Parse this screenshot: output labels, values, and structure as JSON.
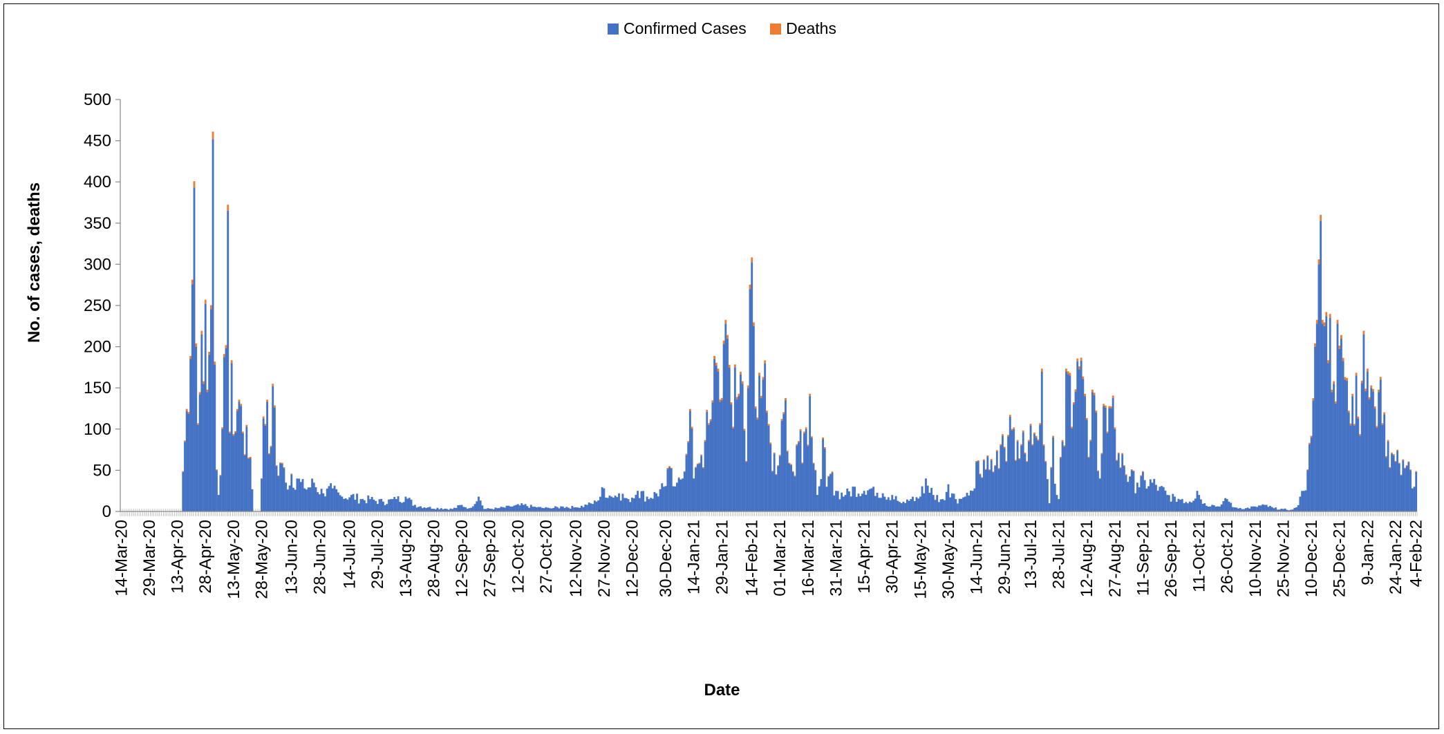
{
  "chart_data": {
    "type": "bar",
    "stacked": true,
    "xlabel": "Date",
    "ylabel": "No. of cases, deaths",
    "ylim": [
      0,
      500
    ],
    "yticks": [
      0,
      50,
      100,
      150,
      200,
      250,
      300,
      350,
      400,
      450,
      500
    ],
    "legend_position": "top-center",
    "grid": false,
    "colors": {
      "Confirmed Cases": "#4472C4",
      "Deaths": "#ED7D31"
    },
    "series": [
      {
        "name": "Confirmed Cases"
      },
      {
        "name": "Deaths"
      }
    ],
    "x_range": [
      "14-Mar-20",
      "4-Feb-22"
    ],
    "x_tick_labels": [
      "14-Mar-20",
      "29-Mar-20",
      "13-Apr-20",
      "28-Apr-20",
      "13-May-20",
      "28-May-20",
      "13-Jun-20",
      "28-Jun-20",
      "14-Jul-20",
      "29-Jul-20",
      "13-Aug-20",
      "28-Aug-20",
      "12-Sep-20",
      "27-Sep-20",
      "12-Oct-20",
      "27-Oct-20",
      "12-Nov-20",
      "27-Nov-20",
      "12-Dec-20",
      "30-Dec-20",
      "14-Jan-21",
      "29-Jan-21",
      "14-Feb-21",
      "01-Mar-21",
      "16-Mar-21",
      "31-Mar-21",
      "15-Apr-21",
      "30-Apr-21",
      "15-May-21",
      "30-May-21",
      "14-Jun-21",
      "29-Jun-21",
      "13-Jul-21",
      "28-Jul-21",
      "12-Aug-21",
      "27-Aug-21",
      "11-Sep-21",
      "26-Sep-21",
      "11-Oct-21",
      "26-Oct-21",
      "10-Nov-21",
      "25-Nov-21",
      "10-Dec-21",
      "25-Dec-21",
      "9-Jan-22",
      "24-Jan-22",
      "4-Feb-22"
    ],
    "daily_cases_profile": [
      [
        "14-Mar-20",
        0
      ],
      [
        "15-Apr-20",
        0
      ],
      [
        "16-Apr-20",
        48
      ],
      [
        "18-Apr-20",
        122
      ],
      [
        "20-Apr-20",
        185
      ],
      [
        "22-Apr-20",
        393
      ],
      [
        "23-Apr-20",
        200
      ],
      [
        "24-Apr-20",
        105
      ],
      [
        "26-Apr-20",
        215
      ],
      [
        "27-Apr-20",
        155
      ],
      [
        "28-Apr-20",
        252
      ],
      [
        "29-Apr-20",
        145
      ],
      [
        "30-Apr-20",
        190
      ],
      [
        "2-May-20",
        452
      ],
      [
        "4-May-20",
        50
      ],
      [
        "5-May-20",
        20
      ],
      [
        "7-May-20",
        100
      ],
      [
        "9-May-20",
        198
      ],
      [
        "10-May-20",
        365
      ],
      [
        "11-May-20",
        95
      ],
      [
        "12-May-20",
        180
      ],
      [
        "13-May-20",
        92
      ],
      [
        "15-May-20",
        122
      ],
      [
        "16-May-20",
        133
      ],
      [
        "17-May-20",
        128
      ],
      [
        "18-May-20",
        95
      ],
      [
        "19-May-20",
        68
      ],
      [
        "20-May-20",
        103
      ],
      [
        "22-May-20",
        65
      ],
      [
        "24-May-20",
        0
      ],
      [
        "27-May-20",
        0
      ],
      [
        "29-May-20",
        113
      ],
      [
        "31-May-20",
        133
      ],
      [
        "2-Jun-20",
        78
      ],
      [
        "3-Jun-20",
        152
      ],
      [
        "5-Jun-20",
        55
      ],
      [
        "8-Jun-20",
        58
      ],
      [
        "10-Jun-20",
        35
      ],
      [
        "13-Jun-20",
        45
      ],
      [
        "16-Jun-20",
        40
      ],
      [
        "20-Jun-20",
        28
      ],
      [
        "25-Jun-20",
        35
      ],
      [
        "30-Jun-20",
        22
      ],
      [
        "5-Jul-20",
        28
      ],
      [
        "10-Jul-20",
        18
      ],
      [
        "15-Jul-20",
        20
      ],
      [
        "20-Jul-20",
        15
      ],
      [
        "25-Jul-20",
        15
      ],
      [
        "1-Aug-20",
        12
      ],
      [
        "8-Aug-20",
        15
      ],
      [
        "13-Aug-20",
        18
      ],
      [
        "18-Aug-20",
        8
      ],
      [
        "25-Aug-20",
        5
      ],
      [
        "1-Sep-20",
        4
      ],
      [
        "7-Sep-20",
        3
      ],
      [
        "12-Sep-20",
        8
      ],
      [
        "16-Sep-20",
        4
      ],
      [
        "21-Sep-20",
        18
      ],
      [
        "24-Sep-20",
        3
      ],
      [
        "1-Oct-20",
        4
      ],
      [
        "8-Oct-20",
        6
      ],
      [
        "15-Oct-20",
        8
      ],
      [
        "22-Oct-20",
        5
      ],
      [
        "29-Oct-20",
        4
      ],
      [
        "5-Nov-20",
        6
      ],
      [
        "12-Nov-20",
        5
      ],
      [
        "18-Nov-20",
        8
      ],
      [
        "23-Nov-20",
        12
      ],
      [
        "27-Nov-20",
        28
      ],
      [
        "1-Dec-20",
        18
      ],
      [
        "5-Dec-20",
        22
      ],
      [
        "10-Dec-20",
        15
      ],
      [
        "15-Dec-20",
        25
      ],
      [
        "20-Dec-20",
        18
      ],
      [
        "25-Dec-20",
        22
      ],
      [
        "29-Dec-20",
        30
      ],
      [
        "2-Jan-21",
        52
      ],
      [
        "5-Jan-21",
        35
      ],
      [
        "8-Jan-21",
        40
      ],
      [
        "12-Jan-21",
        122
      ],
      [
        "14-Jan-21",
        40
      ],
      [
        "17-Jan-21",
        58
      ],
      [
        "20-Jan-21",
        85
      ],
      [
        "22-Jan-21",
        105
      ],
      [
        "25-Jan-21",
        185
      ],
      [
        "27-Jan-21",
        170
      ],
      [
        "29-Jan-21",
        135
      ],
      [
        "31-Jan-21",
        228
      ],
      [
        "1-Feb-21",
        210
      ],
      [
        "3-Feb-21",
        130
      ],
      [
        "5-Feb-21",
        175
      ],
      [
        "7-Feb-21",
        140
      ],
      [
        "9-Feb-21",
        155
      ],
      [
        "11-Feb-21",
        60
      ],
      [
        "13-Feb-21",
        270
      ],
      [
        "15-Feb-21",
        225
      ],
      [
        "16-Feb-21",
        125
      ],
      [
        "18-Feb-21",
        165
      ],
      [
        "20-Feb-21",
        160
      ],
      [
        "22-Feb-21",
        120
      ],
      [
        "24-Feb-21",
        82
      ],
      [
        "26-Feb-21",
        70
      ],
      [
        "28-Feb-21",
        55
      ],
      [
        "2-Mar-21",
        110
      ],
      [
        "4-Mar-21",
        135
      ],
      [
        "6-Mar-21",
        58
      ],
      [
        "8-Mar-21",
        48
      ],
      [
        "10-Mar-21",
        80
      ],
      [
        "12-Mar-21",
        98
      ],
      [
        "14-Mar-21",
        95
      ],
      [
        "15-Mar-21",
        100
      ],
      [
        "17-Mar-21",
        140
      ],
      [
        "19-Mar-21",
        58
      ],
      [
        "21-Mar-21",
        20
      ],
      [
        "24-Mar-21",
        88
      ],
      [
        "26-Mar-21",
        30
      ],
      [
        "28-Mar-21",
        45
      ],
      [
        "31-Mar-21",
        25
      ],
      [
        "5-Apr-21",
        20
      ],
      [
        "10-Apr-21",
        30
      ],
      [
        "15-Apr-21",
        25
      ],
      [
        "20-Apr-21",
        30
      ],
      [
        "25-Apr-21",
        22
      ],
      [
        "30-Apr-21",
        20
      ],
      [
        "5-May-21",
        10
      ],
      [
        "10-May-21",
        15
      ],
      [
        "15-May-21",
        18
      ],
      [
        "18-May-21",
        40
      ],
      [
        "22-May-21",
        20
      ],
      [
        "27-May-21",
        15
      ],
      [
        "30-May-21",
        33
      ],
      [
        "3-Jun-21",
        15
      ],
      [
        "8-Jun-21",
        18
      ],
      [
        "12-Jun-21",
        25
      ],
      [
        "14-Jun-21",
        60
      ],
      [
        "16-Jun-21",
        45
      ],
      [
        "18-Jun-21",
        62
      ],
      [
        "21-Jun-21",
        50
      ],
      [
        "24-Jun-21",
        55
      ],
      [
        "27-Jun-21",
        80
      ],
      [
        "28-Jun-21",
        92
      ],
      [
        "30-Jun-21",
        60
      ],
      [
        "2-Jul-21",
        115
      ],
      [
        "4-Jul-21",
        100
      ],
      [
        "6-Jul-21",
        85
      ],
      [
        "8-Jul-21",
        80
      ],
      [
        "10-Jul-21",
        70
      ],
      [
        "12-Jul-21",
        85
      ],
      [
        "14-Jul-21",
        80
      ],
      [
        "16-Jul-21",
        90
      ],
      [
        "18-Jul-21",
        105
      ],
      [
        "19-Jul-21",
        170
      ],
      [
        "21-Jul-21",
        60
      ],
      [
        "23-Jul-21",
        10
      ],
      [
        "25-Jul-21",
        90
      ],
      [
        "27-Jul-21",
        20
      ],
      [
        "28-Jul-21",
        15
      ],
      [
        "30-Jul-21",
        85
      ],
      [
        "1-Aug-21",
        170
      ],
      [
        "3-Aug-21",
        165
      ],
      [
        "5-Aug-21",
        130
      ],
      [
        "7-Aug-21",
        182
      ],
      [
        "9-Aug-21",
        183
      ],
      [
        "11-Aug-21",
        140
      ],
      [
        "13-Aug-21",
        65
      ],
      [
        "15-Aug-21",
        145
      ],
      [
        "17-Aug-21",
        120
      ],
      [
        "19-Aug-21",
        40
      ],
      [
        "21-Aug-21",
        128
      ],
      [
        "23-Aug-21",
        95
      ],
      [
        "25-Aug-21",
        125
      ],
      [
        "27-Aug-21",
        100
      ],
      [
        "29-Aug-21",
        70
      ],
      [
        "1-Sep-21",
        55
      ],
      [
        "4-Sep-21",
        42
      ],
      [
        "8-Sep-21",
        35
      ],
      [
        "12-Sep-21",
        38
      ],
      [
        "16-Sep-21",
        35
      ],
      [
        "20-Sep-21",
        30
      ],
      [
        "24-Sep-21",
        20
      ],
      [
        "28-Sep-21",
        18
      ],
      [
        "2-Oct-21",
        15
      ],
      [
        "6-Oct-21",
        12
      ],
      [
        "10-Oct-21",
        25
      ],
      [
        "14-Oct-21",
        10
      ],
      [
        "18-Oct-21",
        8
      ],
      [
        "22-Oct-21",
        6
      ],
      [
        "26-Oct-21",
        15
      ],
      [
        "30-Oct-21",
        5
      ],
      [
        "5-Nov-21",
        4
      ],
      [
        "10-Nov-21",
        6
      ],
      [
        "15-Nov-21",
        8
      ],
      [
        "20-Nov-21",
        4
      ],
      [
        "25-Nov-21",
        3
      ],
      [
        "29-Nov-21",
        2
      ],
      [
        "2-Dec-21",
        5
      ],
      [
        "4-Dec-21",
        18
      ],
      [
        "6-Dec-21",
        25
      ],
      [
        "8-Dec-21",
        50
      ],
      [
        "10-Dec-21",
        90
      ],
      [
        "12-Dec-21",
        200
      ],
      [
        "13-Dec-21",
        228
      ],
      [
        "14-Dec-21",
        300
      ],
      [
        "15-Dec-21",
        353
      ],
      [
        "16-Dec-21",
        228
      ],
      [
        "17-Dec-21",
        225
      ],
      [
        "19-Dec-21",
        180
      ],
      [
        "20-Dec-21",
        235
      ],
      [
        "22-Dec-21",
        155
      ],
      [
        "24-Dec-21",
        228
      ],
      [
        "26-Dec-21",
        210
      ],
      [
        "28-Dec-21",
        160
      ],
      [
        "30-Dec-21",
        120
      ],
      [
        "1-Jan-22",
        140
      ],
      [
        "3-Jan-22",
        165
      ],
      [
        "5-Jan-22",
        92
      ],
      [
        "7-Jan-22",
        215
      ],
      [
        "9-Jan-22",
        170
      ],
      [
        "11-Jan-22",
        150
      ],
      [
        "13-Jan-22",
        125
      ],
      [
        "15-Jan-22",
        145
      ],
      [
        "17-Jan-22",
        105
      ],
      [
        "18-Jan-22",
        118
      ],
      [
        "20-Jan-22",
        85
      ],
      [
        "22-Jan-22",
        70
      ],
      [
        "24-Jan-22",
        60
      ],
      [
        "26-Jan-22",
        58
      ],
      [
        "28-Jan-22",
        62
      ],
      [
        "30-Jan-22",
        55
      ],
      [
        "1-Feb-22",
        50
      ],
      [
        "2-Feb-22",
        28
      ],
      [
        "3-Feb-22",
        30
      ],
      [
        "4-Feb-22",
        48
      ]
    ]
  }
}
